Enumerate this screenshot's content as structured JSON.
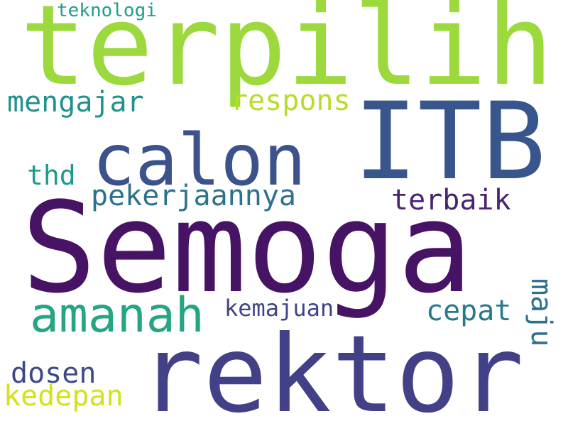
{
  "wordcloud": {
    "background": "#ffffff",
    "words": {
      "semoga": {
        "text": "Semoga",
        "color": "#471365"
      },
      "terpilih": {
        "text": "terpilih",
        "color": "#9bd93c"
      },
      "rektor": {
        "text": "rektor",
        "color": "#424086"
      },
      "itb": {
        "text": "ITB",
        "color": "#39568c"
      },
      "calon": {
        "text": "calon",
        "color": "#3b528b"
      },
      "amanah": {
        "text": "amanah",
        "color": "#25a584"
      },
      "pekerjaan": {
        "text": "pekerjaannya",
        "color": "#2c718e"
      },
      "terbaik": {
        "text": "terbaik",
        "color": "#482475"
      },
      "mengajar": {
        "text": "mengajar",
        "color": "#21918c"
      },
      "respons": {
        "text": "respons",
        "color": "#b5de2b"
      },
      "thd": {
        "text": "thd",
        "color": "#1f9a8a"
      },
      "cepat": {
        "text": "cepat",
        "color": "#2a788e"
      },
      "kemajuan": {
        "text": "kemajuan",
        "color": "#404387"
      },
      "dosen": {
        "text": "dosen",
        "color": "#3e4989"
      },
      "kedepan": {
        "text": "kedepan",
        "color": "#d2e21b"
      },
      "teknologi": {
        "text": "teknologi",
        "color": "#1f9e89"
      },
      "maju": {
        "text": "maju",
        "color": "#2d708e"
      }
    }
  }
}
